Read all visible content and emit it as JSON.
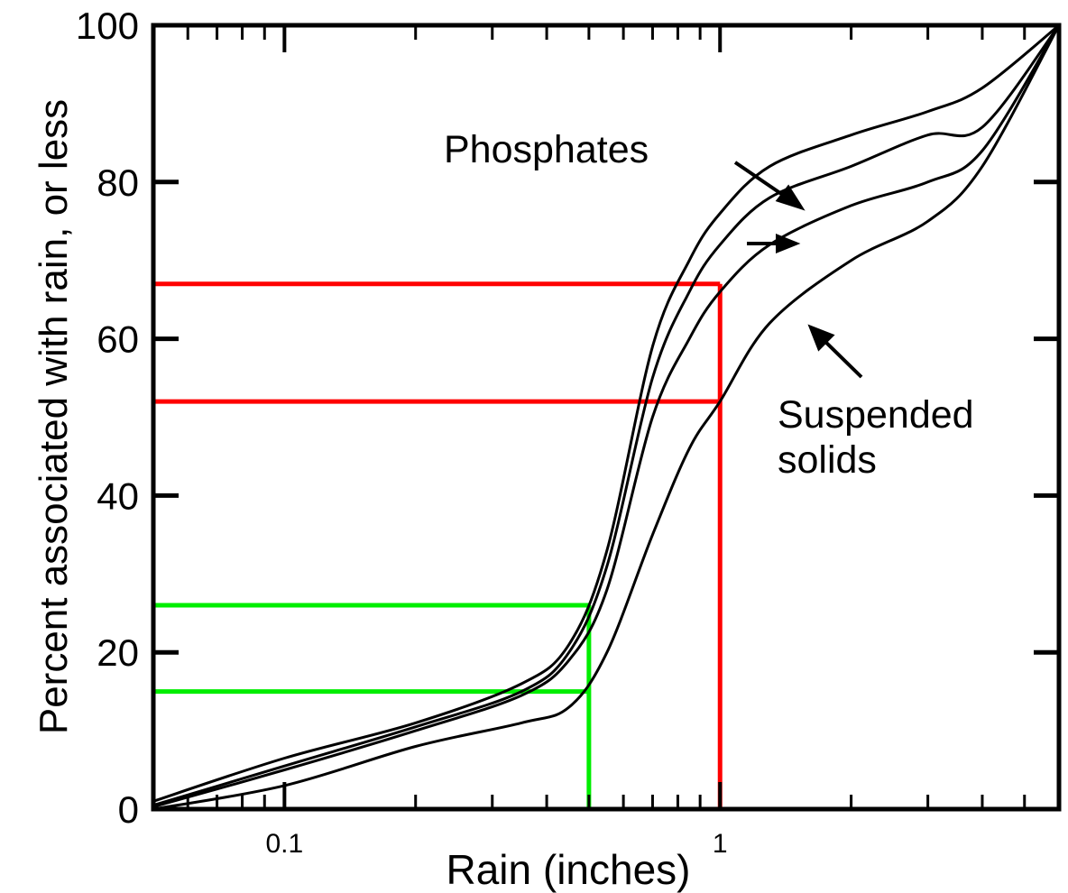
{
  "chart_data": {
    "type": "line",
    "xlabel": "Rain (inches)",
    "ylabel": "Percent associated with rain, or less",
    "x_scale": "log",
    "xlim": [
      0.05,
      6
    ],
    "ylim": [
      0,
      100
    ],
    "x_ticks_labeled": [
      {
        "value": 0.1,
        "label": "0.1"
      },
      {
        "value": 1,
        "label": "1"
      }
    ],
    "x_ticks_minor": [
      0.06,
      0.07,
      0.08,
      0.09,
      0.2,
      0.3,
      0.4,
      0.5,
      0.6,
      0.7,
      0.8,
      0.9,
      2,
      3,
      4,
      5
    ],
    "y_ticks": [
      {
        "value": 0,
        "label": "0"
      },
      {
        "value": 20,
        "label": "20"
      },
      {
        "value": 40,
        "label": "40"
      },
      {
        "value": 60,
        "label": "60"
      },
      {
        "value": 80,
        "label": "80"
      },
      {
        "value": 100,
        "label": "100"
      }
    ],
    "grid": false,
    "series": [
      {
        "x": [
          0.05,
          0.1,
          0.2,
          0.35,
          0.45,
          0.55,
          0.7,
          0.85,
          1.0,
          1.3,
          2.0,
          3.0,
          4.0,
          6.0
        ],
        "y": [
          1,
          6.5,
          11,
          16,
          21,
          33,
          59,
          70,
          76,
          82,
          86,
          89,
          92,
          100
        ]
      },
      {
        "x": [
          0.05,
          0.1,
          0.2,
          0.35,
          0.45,
          0.55,
          0.7,
          0.85,
          1.0,
          1.3,
          2.0,
          3.0,
          4.0,
          6.0
        ],
        "y": [
          0.5,
          5.5,
          10.5,
          15,
          20,
          31,
          55,
          66,
          72,
          78,
          82,
          86,
          87,
          100
        ]
      },
      {
        "x": [
          0.05,
          0.1,
          0.2,
          0.35,
          0.45,
          0.55,
          0.7,
          0.85,
          1.0,
          1.3,
          2.0,
          3.0,
          4.0,
          6.0
        ],
        "y": [
          0.3,
          5,
          10,
          14.5,
          19,
          28,
          50,
          60,
          66,
          72,
          77,
          80,
          84,
          100
        ]
      },
      {
        "x": [
          0.05,
          0.1,
          0.2,
          0.35,
          0.45,
          0.55,
          0.7,
          0.85,
          1.0,
          1.3,
          2.0,
          3.0,
          4.0,
          6.0
        ],
        "y": [
          0,
          3,
          8,
          11,
          13,
          20,
          35,
          46,
          52,
          62,
          70,
          75,
          82,
          100
        ]
      }
    ],
    "annotations": [
      {
        "text": "Phosphates"
      },
      {
        "text": "Suspended"
      },
      {
        "text": "solids"
      }
    ],
    "reference_lines": [
      {
        "color": "#ff0000",
        "x": 1.0,
        "y": [
          67,
          52
        ]
      },
      {
        "color": "#00ee00",
        "x": 0.5,
        "y": [
          26,
          15
        ]
      }
    ]
  }
}
